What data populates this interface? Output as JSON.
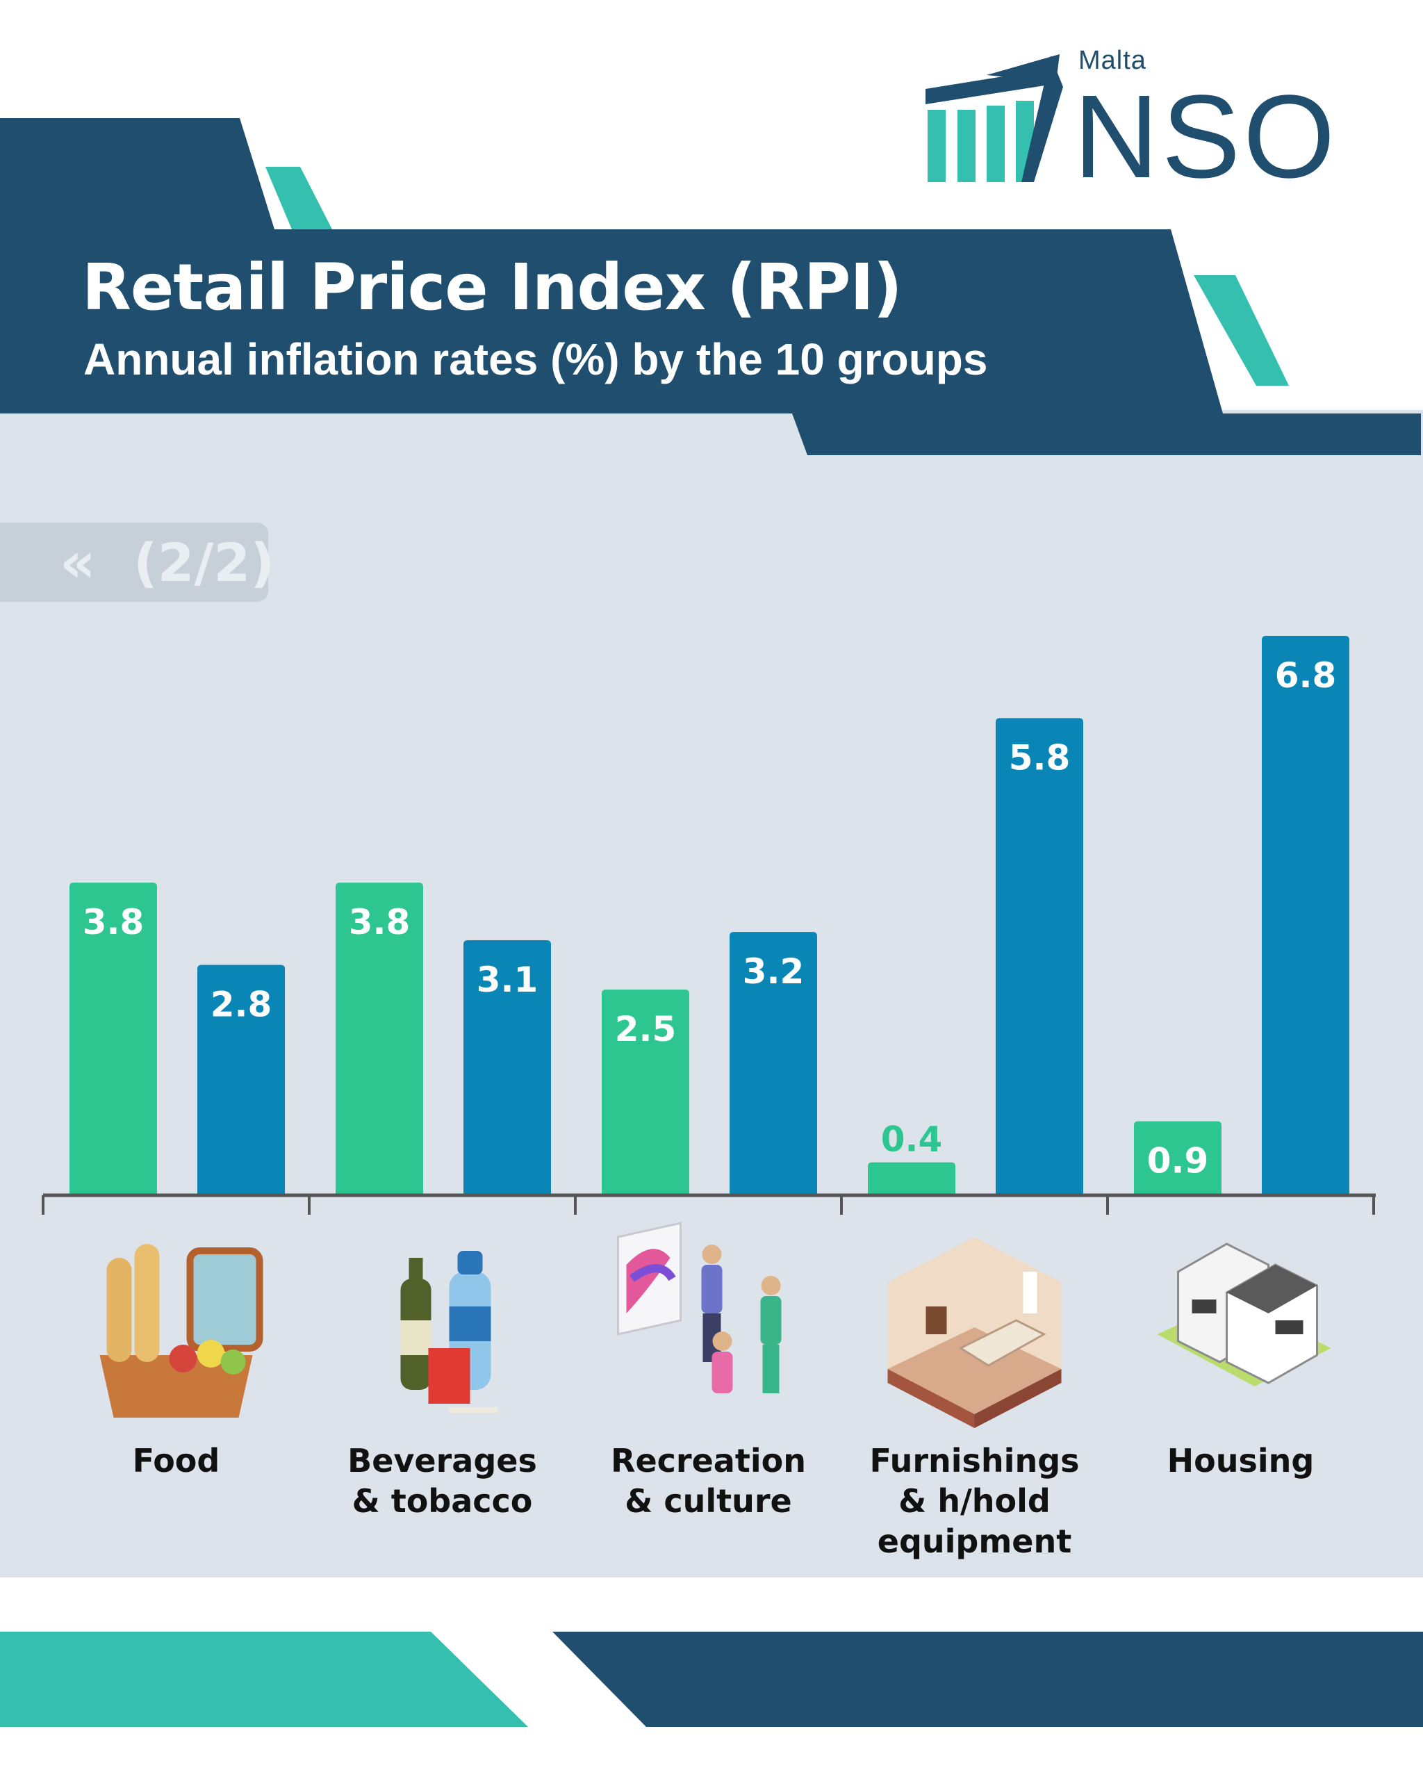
{
  "logo": {
    "country": "Malta",
    "name": "NSO"
  },
  "header": {
    "title": "Retail Price Index (RPI)",
    "subtitle": "Annual inflation rates (%) by the 10 groups"
  },
  "pager": {
    "icon": "double-chevron-left-icon",
    "text": "(2/2)"
  },
  "colors": {
    "navy": "#1f4e6e",
    "teal": "#35bfae",
    "series_green": "#2ec690",
    "series_blue": "#0a86b6",
    "panel": "#dde3ea"
  },
  "chart_data": {
    "type": "bar",
    "title": "",
    "categories": [
      [
        "Food"
      ],
      [
        "Beverages",
        "& tobacco"
      ],
      [
        "Recreation",
        "& culture"
      ],
      [
        "Furnishings",
        "& h/hold",
        "equipment"
      ],
      [
        "Housing"
      ]
    ],
    "category_icons": [
      "picnic-basket-icon",
      "bottles-cigarettes-icon",
      "art-gallery-icon",
      "bedroom-icon",
      "houses-icon"
    ],
    "series": [
      {
        "values": [
          3.8,
          3.8,
          2.5,
          0.4,
          0.9
        ],
        "color": "#2ec690"
      },
      {
        "values": [
          2.8,
          3.1,
          3.2,
          5.8,
          6.8
        ],
        "color": "#0a86b6"
      }
    ],
    "data_labels": [
      [
        "3.8",
        "3.8",
        "2.5",
        "0.4",
        "0.9"
      ],
      [
        "2.8",
        "3.1",
        "3.2",
        "5.8",
        "6.8"
      ]
    ],
    "ylim": [
      0,
      6.8
    ],
    "grid": false,
    "legend": "none"
  }
}
